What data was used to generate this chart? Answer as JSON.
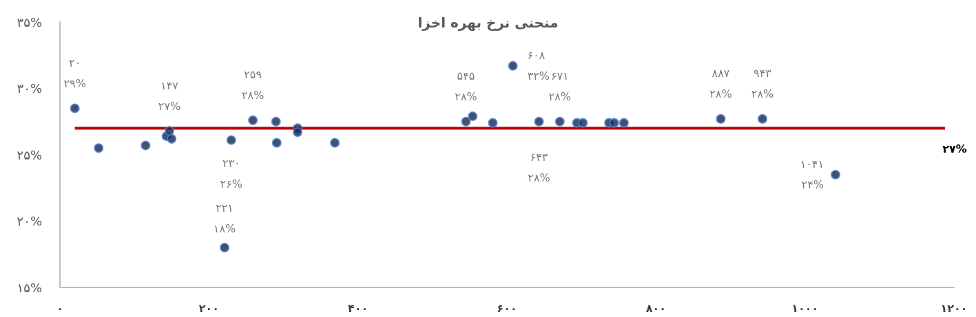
{
  "chart_data": {
    "type": "scatter",
    "title": "منحنی نرخ بهره اخزا",
    "xlim": [
      0,
      1200
    ],
    "ylim": [
      15,
      35
    ],
    "xticks": [
      {
        "value": 0,
        "label": "۰"
      },
      {
        "value": 200,
        "label": "۲۰۰"
      },
      {
        "value": 400,
        "label": "۴۰۰"
      },
      {
        "value": 600,
        "label": "۶۰۰"
      },
      {
        "value": 800,
        "label": "۸۰۰"
      },
      {
        "value": 1000,
        "label": "۱۰۰۰"
      },
      {
        "value": 1200,
        "label": "۱۲۰۰"
      }
    ],
    "yticks": [
      {
        "value": 15,
        "label": "۱۵%"
      },
      {
        "value": 20,
        "label": "۲۰%"
      },
      {
        "value": 25,
        "label": "۲۵%"
      },
      {
        "value": 30,
        "label": "۳۰%"
      },
      {
        "value": 35,
        "label": "۳۵%"
      }
    ],
    "grid": false,
    "marker": "circle",
    "series": [
      {
        "color": "#162447",
        "x": [
          20,
          52,
          115,
          143,
          150,
          147,
          221,
          230,
          259,
          290,
          291,
          319,
          319,
          369,
          545,
          554,
          581,
          608,
          643,
          671,
          694,
          702,
          737,
          744,
          757,
          887,
          943,
          1041
        ],
        "values": [
          28.5,
          25.5,
          25.7,
          26.4,
          26.2,
          26.8,
          18.0,
          26.1,
          27.6,
          27.5,
          25.9,
          27.0,
          26.7,
          25.9,
          27.5,
          27.9,
          27.4,
          31.7,
          27.5,
          27.5,
          27.4,
          27.4,
          27.4,
          27.4,
          27.4,
          27.7,
          27.7,
          23.5
        ],
        "value_labels": [
          "۲۰\n۲۹%",
          null,
          null,
          null,
          null,
          "۱۴۷\n۲۷%",
          "۲۲۱\n۱۸%",
          "۲۳۰\n۲۶%",
          "۲۵۹\n۲۸%",
          null,
          null,
          null,
          null,
          null,
          "۵۴۵\n۲۸%",
          null,
          null,
          "۶۰۸\n۳۲%",
          "۶۴۳\n۲۸%",
          "۶۷۱\n۲۸%",
          null,
          null,
          null,
          null,
          null,
          "۸۸۷\n۲۸%",
          "۹۴۳\n۲۸%",
          "۱۰۴۱\n۲۴%"
        ]
      },
      {
        "type": "line",
        "color": "#c00000",
        "marker": "none",
        "x": [
          20,
          1188
        ],
        "values": [
          27,
          27
        ],
        "value_labels": [
          null,
          "۲۷%"
        ]
      }
    ]
  }
}
